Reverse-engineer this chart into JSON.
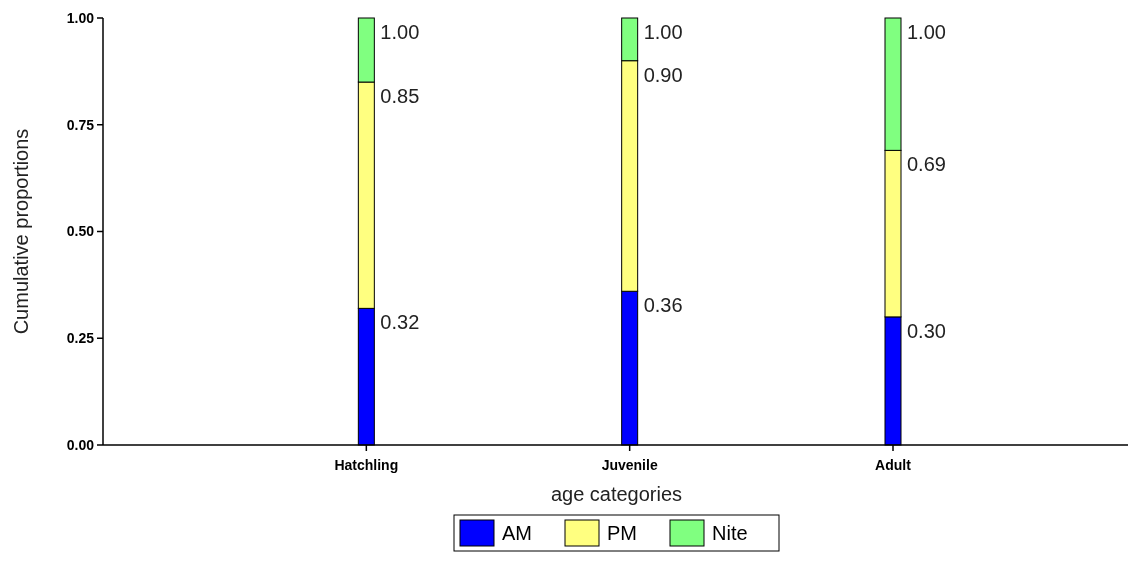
{
  "chart_data": {
    "type": "bar",
    "stacked": true,
    "xlabel": "age categories",
    "ylabel": "Cumulative proportions",
    "categories": [
      "Hatchling",
      "Juvenile",
      "Adult"
    ],
    "series": [
      {
        "name": "AM",
        "color": "#0000ff",
        "values": [
          0.32,
          0.36,
          0.3
        ]
      },
      {
        "name": "PM",
        "color": "#ffff80",
        "values": [
          0.53,
          0.54,
          0.39
        ]
      },
      {
        "name": "Nite",
        "color": "#80ff80",
        "values": [
          0.15,
          0.1,
          0.31
        ]
      }
    ],
    "annotations": [
      {
        "text": "0.32",
        "x": "Hatchling",
        "y": 0.32
      },
      {
        "text": "0.85",
        "x": "Hatchling",
        "y": 0.85
      },
      {
        "text": "1.00",
        "x": "Hatchling",
        "y": 1.0
      },
      {
        "text": "0.36",
        "x": "Juvenile",
        "y": 0.36
      },
      {
        "text": "0.90",
        "x": "Juvenile",
        "y": 0.9
      },
      {
        "text": "1.00",
        "x": "Juvenile",
        "y": 1.0
      },
      {
        "text": "0.30",
        "x": "Adult",
        "y": 0.3
      },
      {
        "text": "0.69",
        "x": "Adult",
        "y": 0.69
      },
      {
        "text": "1.00",
        "x": "Adult",
        "y": 1.0
      }
    ],
    "ylim": [
      0,
      1
    ],
    "yticks": [
      {
        "value": 0,
        "label": "0.00"
      },
      {
        "value": 0.25,
        "label": "0.25"
      },
      {
        "value": 0.5,
        "label": "0.50"
      },
      {
        "value": 0.75,
        "label": "0.75"
      },
      {
        "value": 1,
        "label": "1.00"
      }
    ],
    "grid": false,
    "legend": "bottom"
  }
}
